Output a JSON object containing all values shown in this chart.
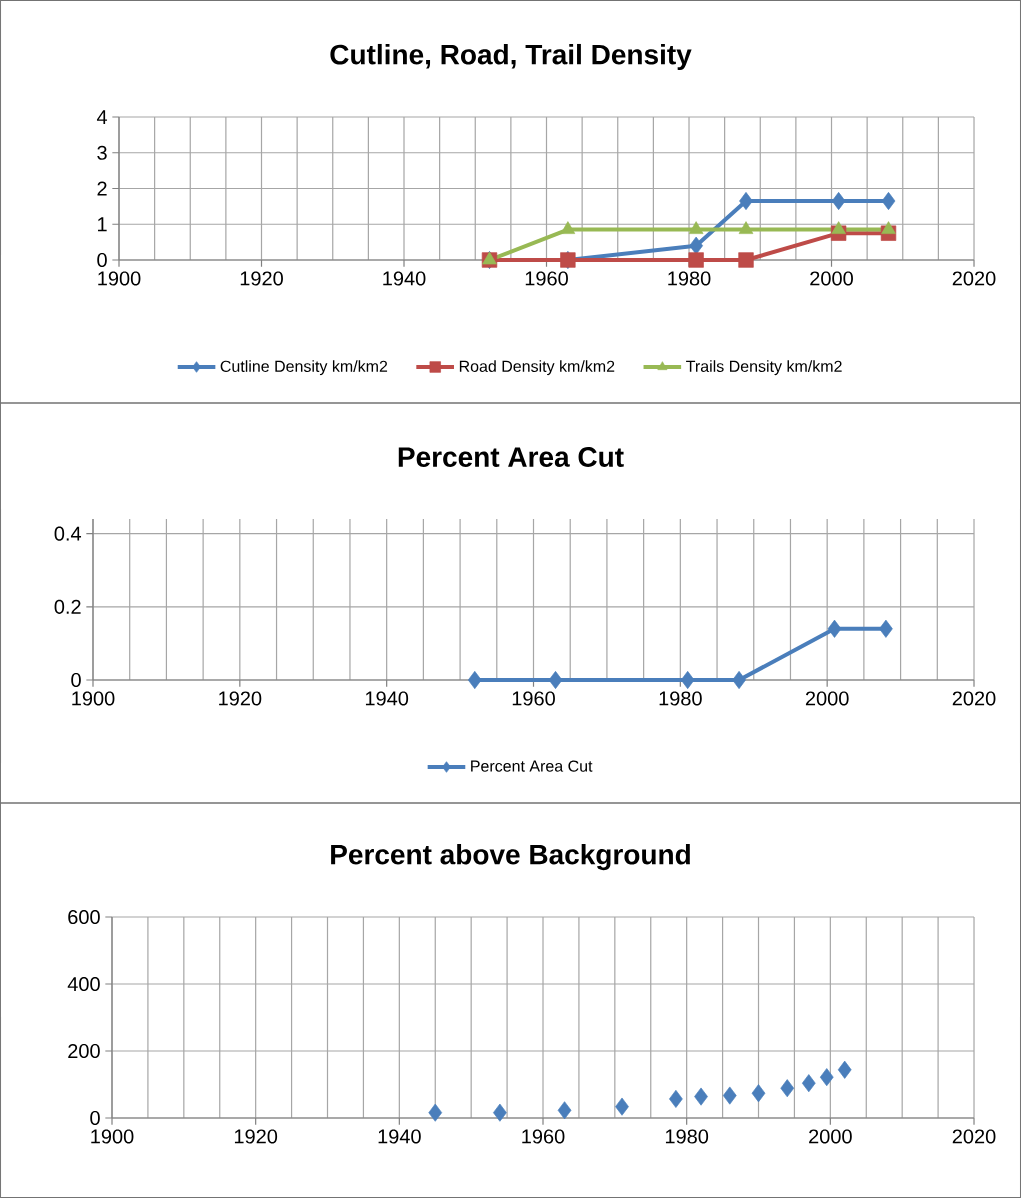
{
  "chart_data": [
    {
      "type": "line",
      "title": "Cutline, Road, Trail Density",
      "x": [
        1952,
        1963,
        1981,
        1988,
        2001,
        2008
      ],
      "xlim": [
        1900,
        2020
      ],
      "xticks": [
        1900,
        1920,
        1940,
        1960,
        1980,
        2000,
        2020
      ],
      "ylim": [
        0,
        4
      ],
      "yticks": [
        0,
        1,
        2,
        3,
        4
      ],
      "grid": true,
      "legend": "bottom",
      "line_style": "solid",
      "series": [
        {
          "name": "Cutline Density km/km2",
          "color": "#4a7ebb",
          "marker": "diamond",
          "values": [
            0,
            0,
            0.4,
            1.65,
            1.65,
            1.65
          ]
        },
        {
          "name": "Road Density km/km2",
          "color": "#be4b48",
          "marker": "square",
          "values": [
            0,
            0,
            0,
            0,
            0.75,
            0.75
          ]
        },
        {
          "name": "Trails Density km/km2",
          "color": "#98b954",
          "marker": "triangle",
          "values": [
            0,
            0.85,
            0.85,
            0.85,
            0.85,
            0.85
          ]
        }
      ]
    },
    {
      "type": "line",
      "title": "Percent Area Cut",
      "x": [
        1952,
        1963,
        1981,
        1988,
        2001,
        2008
      ],
      "xlim": [
        1900,
        2020
      ],
      "xticks": [
        1900,
        1920,
        1940,
        1960,
        1980,
        2000,
        2020
      ],
      "ylim": [
        0,
        0.44
      ],
      "yticks": [
        0,
        0.2,
        0.4
      ],
      "grid": true,
      "legend": "bottom",
      "line_style": "solid",
      "series": [
        {
          "name": "Percent Area Cut",
          "color": "#4a7ebb",
          "marker": "diamond",
          "values": [
            0,
            0,
            0,
            0,
            0.14,
            0.14
          ]
        }
      ]
    },
    {
      "type": "scatter",
      "title": "Percent above Background",
      "x": [
        1945,
        1954,
        1963,
        1971,
        1978.5,
        1982,
        1986,
        1990,
        1994,
        1997,
        1999.5,
        2002
      ],
      "xlim": [
        1900,
        2020
      ],
      "xticks": [
        1900,
        1920,
        1940,
        1960,
        1980,
        2000,
        2020
      ],
      "ylim": [
        0,
        600
      ],
      "yticks": [
        0,
        200,
        400,
        600
      ],
      "grid": true,
      "marker": "diamond",
      "series": [
        {
          "color": "#4a7ebb",
          "values": [
            16,
            16,
            23,
            34,
            57,
            64,
            67,
            74,
            89,
            104,
            122,
            144
          ]
        }
      ]
    }
  ]
}
